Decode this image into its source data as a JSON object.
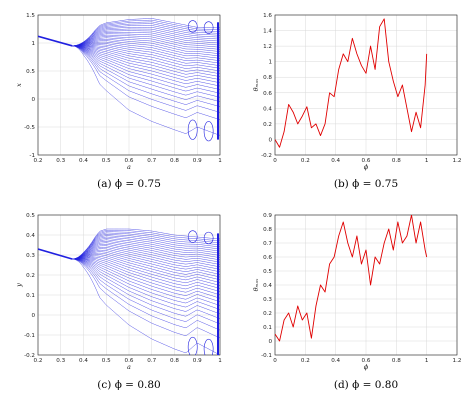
{
  "chart_data": [
    {
      "panel": "a",
      "type": "line",
      "caption": "(a) ϕ = 0.75",
      "xlabel": "a",
      "ylabel": "x",
      "xlim": [
        0.2,
        1.0
      ],
      "ylim": [
        -1.0,
        1.5
      ],
      "xticks": [
        "0.2",
        "0.3",
        "0.4",
        "0.5",
        "0.6",
        "0.7",
        "0.8",
        "0.9",
        "1"
      ],
      "yticks": [
        "-1",
        "-0.5",
        "0",
        "0.5",
        "1",
        "1.5"
      ],
      "grid": true,
      "series_color": "#1f1fe0",
      "series": [
        {
          "kind": "fixed_point",
          "x": [
            0.2,
            0.35
          ],
          "y": [
            1.12,
            0.95
          ]
        },
        {
          "kind": "upper_envelope",
          "x": [
            0.35,
            0.4,
            0.45,
            0.5,
            0.6,
            0.7,
            0.8,
            0.9,
            1.0
          ],
          "y": [
            0.95,
            1.12,
            1.28,
            1.36,
            1.42,
            1.44,
            1.36,
            1.28,
            1.27
          ]
        },
        {
          "kind": "lower_envelope",
          "x": [
            0.35,
            0.4,
            0.5,
            0.6,
            0.7,
            0.8,
            0.85,
            0.9,
            1.0
          ],
          "y": [
            0.95,
            0.55,
            0.15,
            -0.2,
            -0.4,
            -0.55,
            -0.62,
            -0.5,
            -0.65
          ]
        }
      ]
    },
    {
      "panel": "b",
      "type": "line",
      "caption": "(b) ϕ = 0.75",
      "xlabel": "ϕ",
      "ylabel": "θₘₐₓ",
      "xlim": [
        0,
        1.2
      ],
      "ylim": [
        -0.2,
        1.6
      ],
      "xticks": [
        "0",
        "0.2",
        "0.4",
        "0.6",
        "0.8",
        "1",
        "1.2"
      ],
      "yticks": [
        "-0.2",
        "0",
        "0.2",
        "0.4",
        "0.6",
        "0.8",
        "1",
        "1.2",
        "1.4",
        "1.6"
      ],
      "grid": true,
      "series_color": "#e00000",
      "x": [
        0.0,
        0.03,
        0.06,
        0.09,
        0.12,
        0.15,
        0.18,
        0.21,
        0.24,
        0.27,
        0.3,
        0.33,
        0.36,
        0.39,
        0.42,
        0.45,
        0.48,
        0.51,
        0.54,
        0.57,
        0.6,
        0.63,
        0.66,
        0.69,
        0.72,
        0.75,
        0.78,
        0.81,
        0.84,
        0.87,
        0.9,
        0.93,
        0.96,
        0.99,
        1.0
      ],
      "y": [
        0.0,
        -0.1,
        0.1,
        0.45,
        0.35,
        0.2,
        0.3,
        0.42,
        0.15,
        0.2,
        0.05,
        0.2,
        0.6,
        0.55,
        0.9,
        1.1,
        1.0,
        1.3,
        1.1,
        0.95,
        0.85,
        1.2,
        0.9,
        1.45,
        1.55,
        1.0,
        0.75,
        0.55,
        0.7,
        0.4,
        0.1,
        0.35,
        0.15,
        0.7,
        1.1
      ]
    },
    {
      "panel": "c",
      "type": "line",
      "caption": "(c) ϕ = 0.80",
      "xlabel": "a",
      "ylabel": "y",
      "xlim": [
        0.2,
        1.0
      ],
      "ylim": [
        -0.2,
        0.5
      ],
      "xticks": [
        "0.2",
        "0.3",
        "0.4",
        "0.5",
        "0.6",
        "0.7",
        "0.8",
        "0.9",
        "1"
      ],
      "yticks": [
        "-0.2",
        "-0.1",
        "0",
        "0.1",
        "0.2",
        "0.3",
        "0.4",
        "0.5"
      ],
      "grid": true,
      "series_color": "#1f1fe0",
      "series": [
        {
          "kind": "fixed_point",
          "x": [
            0.2,
            0.35
          ],
          "y": [
            0.33,
            0.28
          ]
        },
        {
          "kind": "upper_envelope",
          "x": [
            0.35,
            0.4,
            0.45,
            0.5,
            0.6,
            0.7,
            0.8,
            0.9,
            1.0
          ],
          "y": [
            0.28,
            0.36,
            0.41,
            0.43,
            0.43,
            0.42,
            0.4,
            0.39,
            0.38
          ]
        },
        {
          "kind": "lower_envelope",
          "x": [
            0.35,
            0.4,
            0.5,
            0.6,
            0.7,
            0.8,
            0.85,
            0.9,
            1.0
          ],
          "y": [
            0.28,
            0.18,
            0.05,
            -0.05,
            -0.12,
            -0.17,
            -0.19,
            -0.14,
            -0.2
          ]
        }
      ]
    },
    {
      "panel": "d",
      "type": "line",
      "caption": "(d) ϕ = 0.80",
      "xlabel": "ϕ",
      "ylabel": "θₘₐₓ",
      "xlim": [
        0,
        1.2
      ],
      "ylim": [
        -0.1,
        0.9
      ],
      "xticks": [
        "0",
        "0.2",
        "0.4",
        "0.6",
        "0.8",
        "1",
        "1.2"
      ],
      "yticks": [
        "-0.1",
        "0",
        "0.1",
        "0.2",
        "0.3",
        "0.4",
        "0.5",
        "0.6",
        "0.7",
        "0.8",
        "0.9"
      ],
      "grid": true,
      "series_color": "#e00000",
      "x": [
        0.0,
        0.03,
        0.06,
        0.09,
        0.12,
        0.15,
        0.18,
        0.21,
        0.24,
        0.27,
        0.3,
        0.33,
        0.36,
        0.39,
        0.42,
        0.45,
        0.48,
        0.51,
        0.54,
        0.57,
        0.6,
        0.63,
        0.66,
        0.69,
        0.72,
        0.75,
        0.78,
        0.81,
        0.84,
        0.87,
        0.9,
        0.93,
        0.96,
        0.99,
        1.0
      ],
      "y": [
        0.05,
        0.0,
        0.15,
        0.2,
        0.1,
        0.25,
        0.15,
        0.2,
        0.02,
        0.25,
        0.4,
        0.35,
        0.55,
        0.6,
        0.75,
        0.85,
        0.7,
        0.6,
        0.75,
        0.55,
        0.65,
        0.4,
        0.6,
        0.55,
        0.7,
        0.8,
        0.65,
        0.85,
        0.7,
        0.75,
        0.9,
        0.7,
        0.85,
        0.65,
        0.6
      ]
    }
  ]
}
